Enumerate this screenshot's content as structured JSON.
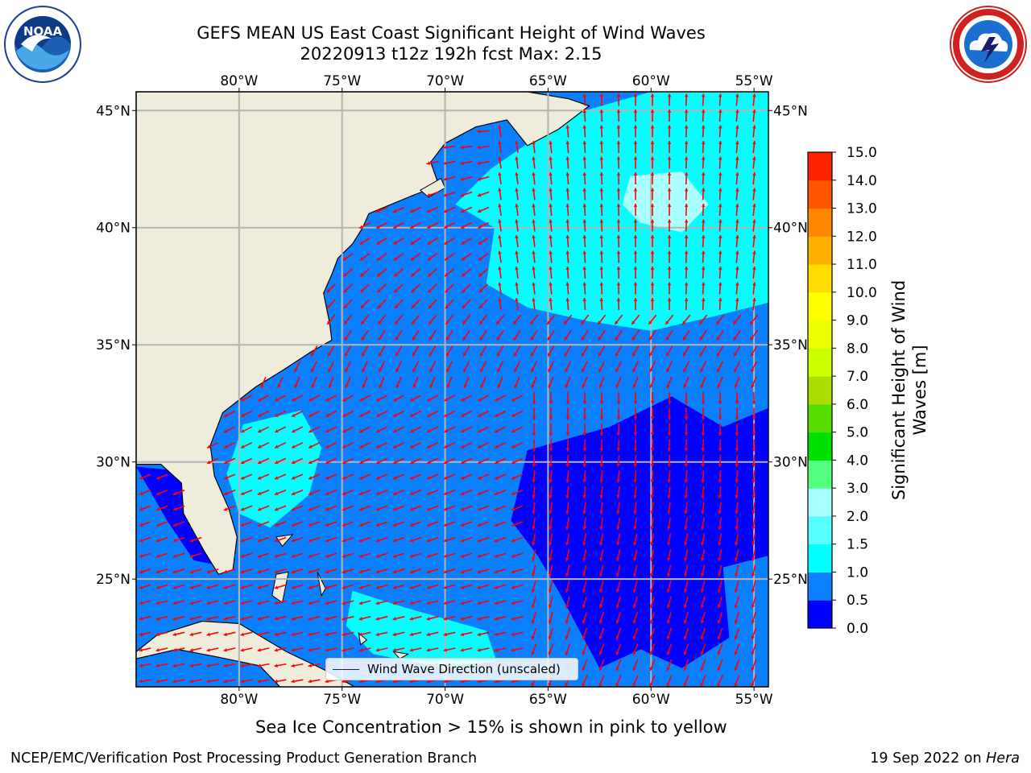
{
  "header": {
    "title_line1": "GEFS MEAN US East Coast Significant Height of Wind Waves",
    "title_line2": "20220913 t12z 192h fcst   Max: 2.15"
  },
  "logos": {
    "left": {
      "icon": "noaa-logo",
      "text": "NOAA",
      "ring_text": "NATIONAL OCEANIC AND ATMOSPHERIC ADMINISTRATION · U.S. DEPARTMENT OF COMMERCE"
    },
    "right": {
      "icon": "nws-logo",
      "ring_text": "NATIONAL WEATHER SERVICE"
    }
  },
  "map": {
    "lon_ticks_top": [
      "80°W",
      "75°W",
      "70°W",
      "65°W",
      "60°W",
      "55°W"
    ],
    "lon_ticks_bottom": [
      "80°W",
      "75°W",
      "70°W",
      "65°W",
      "60°W",
      "55°W"
    ],
    "lat_ticks_left": [
      "45°N",
      "40°N",
      "35°N",
      "30°N",
      "25°N"
    ],
    "lat_ticks_right": [
      "45°N",
      "40°N",
      "35°N",
      "30°N",
      "25°N"
    ],
    "lon_values": [
      -80,
      -75,
      -70,
      -65,
      -60,
      -55
    ],
    "lat_values": [
      45,
      40,
      35,
      30,
      25
    ],
    "extent": {
      "lon_min": -85,
      "lon_max": -54.3,
      "lat_min": 20.4,
      "lat_max": 45.8
    },
    "land_color": "#efecdc",
    "grid_color": "#b4b4b4",
    "arrow_color": "#ff0000",
    "legend_label": "Wind Wave Direction (unscaled)"
  },
  "colorbar": {
    "label": "Significant Height of Wind Waves [m]",
    "label_line1": "Significant Height of Wind",
    "label_line2": "Waves [m]",
    "ticks": [
      "0.0",
      "0.5",
      "1.0",
      "1.5",
      "2.0",
      "3.0",
      "4.0",
      "5.0",
      "6.0",
      "7.0",
      "8.0",
      "9.0",
      "10.0",
      "11.0",
      "12.0",
      "13.0",
      "14.0",
      "15.0"
    ],
    "colors": [
      "#0000ff",
      "#0a80ff",
      "#00ffff",
      "#55ffff",
      "#aaffff",
      "#55ff80",
      "#00e000",
      "#55dd00",
      "#aadd00",
      "#ccff00",
      "#eeff00",
      "#ffff00",
      "#ffdd00",
      "#ffb000",
      "#ff8800",
      "#ff5500",
      "#ff2200"
    ]
  },
  "notes": {
    "sea_ice": "Sea Ice Concentration > 15% is shown in pink to yellow"
  },
  "footer": {
    "left": "NCEP/EMC/Verification Post Processing Product Generation Branch",
    "date": "19 Sep 2022 on ",
    "machine": "Hera"
  }
}
